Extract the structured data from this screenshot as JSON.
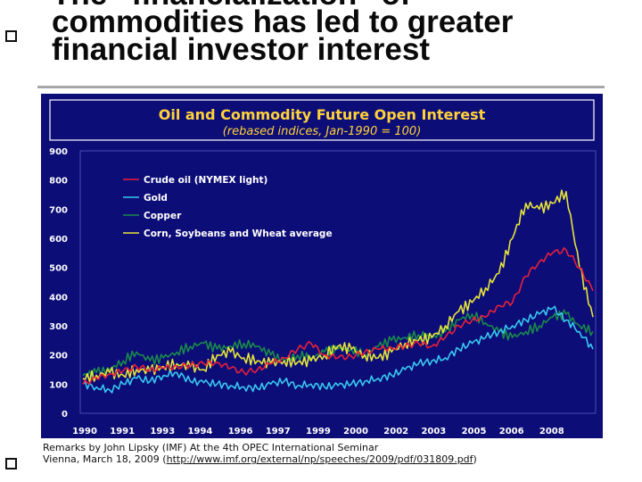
{
  "slide": {
    "title_lines": [
      "The “financialization” of",
      "commodities has led to greater",
      "financial investor interest"
    ],
    "caption_line1": "Remarks by John Lipsky (IMF) At the 4th OPEC International Seminar",
    "caption_line2_prefix": "Vienna, March 18, 2009 (",
    "caption_link": "http://www.imf.org/external/np/speeches/2009/pdf/031809.pdf",
    "caption_line2_suffix": ")"
  },
  "colors": {
    "background": "#0d0d78",
    "title_box": "#0d0d78",
    "title_text": "#ffd23a",
    "subtitle_text": "#ffd23a",
    "crude": "#e8203a",
    "gold": "#38c8f0",
    "copper": "#1a8a4a",
    "grains": "#e6e43a",
    "tick_text": "#ffffff"
  },
  "chart_data": {
    "type": "line",
    "title": "Oil and Commodity Future Open Interest",
    "subtitle": "(rebased indices, Jan-1990 = 100)",
    "ylim": [
      0,
      900
    ],
    "y_ticks": [
      "0",
      "100",
      "200",
      "300",
      "400",
      "500",
      "600",
      "700",
      "800",
      "900"
    ],
    "x_ticks": [
      "1990",
      "1991",
      "1993",
      "1994",
      "1996",
      "1997",
      "1999",
      "2000",
      "2002",
      "2003",
      "2005",
      "2006",
      "2008"
    ],
    "x": [
      1990,
      1990.5,
      1991,
      1991.5,
      1992,
      1992.5,
      1993,
      1993.5,
      1994,
      1994.5,
      1995,
      1995.5,
      1996,
      1996.5,
      1997,
      1997.5,
      1998,
      1998.5,
      1999,
      1999.5,
      2000,
      2000.5,
      2001,
      2001.5,
      2002,
      2002.5,
      2003,
      2003.5,
      2004,
      2004.5,
      2005,
      2005.5,
      2006,
      2006.5,
      2007,
      2007.5,
      2008,
      2008.5,
      2009
    ],
    "grid": false,
    "legend_position": "top-left",
    "series": [
      {
        "name": "Crude oil (NYMEX light)",
        "values": [
          100,
          120,
          135,
          145,
          160,
          150,
          155,
          160,
          165,
          170,
          175,
          155,
          140,
          150,
          170,
          190,
          220,
          240,
          200,
          190,
          195,
          210,
          220,
          225,
          230,
          240,
          230,
          260,
          300,
          320,
          330,
          370,
          380,
          470,
          520,
          550,
          560,
          500,
          420
        ]
      },
      {
        "name": "Gold",
        "values": [
          100,
          90,
          80,
          100,
          120,
          110,
          130,
          140,
          110,
          105,
          100,
          95,
          90,
          85,
          100,
          110,
          95,
          100,
          90,
          95,
          100,
          110,
          120,
          130,
          150,
          170,
          180,
          190,
          220,
          240,
          260,
          280,
          300,
          320,
          340,
          360,
          320,
          280,
          220
        ]
      },
      {
        "name": "Copper",
        "values": [
          130,
          140,
          150,
          180,
          210,
          180,
          190,
          210,
          230,
          240,
          220,
          230,
          240,
          230,
          200,
          180,
          200,
          190,
          210,
          220,
          220,
          200,
          230,
          250,
          260,
          270,
          260,
          280,
          320,
          340,
          310,
          280,
          260,
          280,
          300,
          330,
          340,
          300,
          280
        ]
      },
      {
        "name": "Corn, Soybeans and Wheat average",
        "values": [
          120,
          130,
          140,
          130,
          150,
          145,
          160,
          170,
          160,
          150,
          200,
          210,
          190,
          180,
          170,
          180,
          175,
          180,
          200,
          230,
          220,
          200,
          190,
          210,
          240,
          250,
          260,
          300,
          350,
          380,
          430,
          480,
          600,
          720,
          700,
          720,
          760,
          500,
          330
        ]
      }
    ]
  }
}
